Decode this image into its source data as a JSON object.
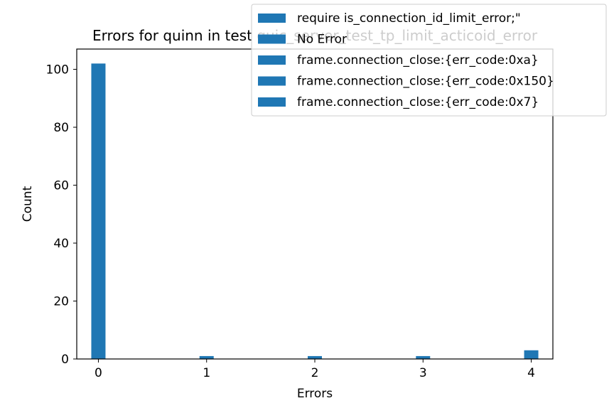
{
  "chart_data": {
    "type": "bar",
    "title": "Errors for quinn in test quic_server_test_tp_limit_acticoid_error",
    "xlabel": "Errors",
    "ylabel": "Count",
    "x_ticks": [
      "0",
      "1",
      "2",
      "3",
      "4"
    ],
    "y_ticks": [
      "0",
      "20",
      "40",
      "60",
      "80",
      "100"
    ],
    "xlim": [
      -0.2,
      4.2
    ],
    "ylim": [
      0,
      107
    ],
    "grid": false,
    "legend_position": "top-right",
    "bar_color": "#1f77b4",
    "series": [
      {
        "name": "require is_connection_id_limit_error;\"",
        "x": 0,
        "value": 102
      },
      {
        "name": "No Error",
        "x": 1,
        "value": 1
      },
      {
        "name": "frame.connection_close:{err_code:0xa}",
        "x": 2,
        "value": 1
      },
      {
        "name": "frame.connection_close:{err_code:0x150}",
        "x": 3,
        "value": 1
      },
      {
        "name": "frame.connection_close:{err_code:0x7}",
        "x": 4,
        "value": 3
      }
    ]
  }
}
